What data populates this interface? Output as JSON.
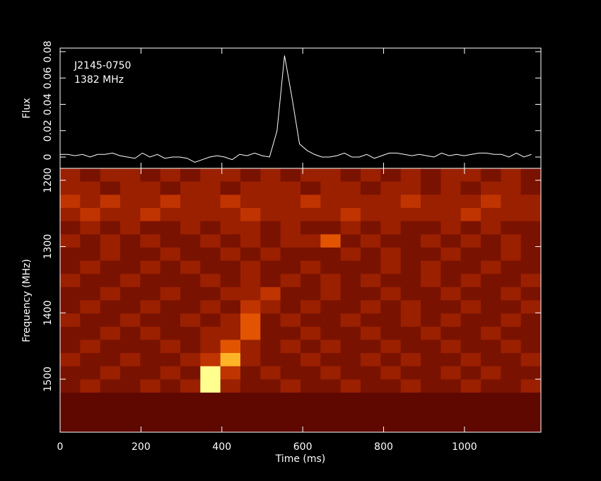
{
  "chart_data": [
    {
      "type": "line",
      "ylabel": "Flux",
      "annotations": [
        "J2145-0750",
        "1382 MHz"
      ],
      "color": "#ffffff",
      "xlim": [
        0,
        1189
      ],
      "xticks": [
        0,
        200,
        400,
        600,
        800,
        1000
      ],
      "ylim": [
        -0.0086,
        0.0827
      ],
      "yticks": [
        0,
        0.02,
        0.04,
        0.06,
        0.08
      ],
      "x": [
        0,
        18.5,
        37,
        55.5,
        74,
        92.5,
        111,
        129.5,
        148,
        166.5,
        185,
        203.5,
        222,
        240.5,
        259,
        277.5,
        296,
        314.5,
        333,
        351.5,
        370,
        388.5,
        407,
        425.5,
        444,
        462.5,
        481,
        499.5,
        518,
        536.5,
        555,
        573.5,
        592,
        610.5,
        629,
        647.5,
        666,
        684.5,
        703,
        721.5,
        740,
        758.5,
        777,
        795.5,
        814,
        832.5,
        851,
        869.5,
        888,
        906.5,
        925,
        943.5,
        962,
        980.5,
        999,
        1017.5,
        1036,
        1054.5,
        1073,
        1091.5,
        1110,
        1128.5,
        1147,
        1165.5
      ],
      "values": [
        0.002,
        0.002,
        0.001,
        0.002,
        0.0,
        0.002,
        0.002,
        0.003,
        0.001,
        0.0,
        -0.001,
        0.003,
        0.0,
        0.002,
        -0.001,
        0.0,
        0.0,
        -0.001,
        -0.004,
        -0.002,
        0.0,
        0.001,
        0.0,
        -0.002,
        0.002,
        0.001,
        0.003,
        0.001,
        0.0,
        0.02,
        0.077,
        0.045,
        0.01,
        0.005,
        0.002,
        0.0,
        0.0,
        0.001,
        0.003,
        0.0,
        0.0,
        0.002,
        -0.001,
        0.001,
        0.003,
        0.003,
        0.002,
        0.001,
        0.002,
        0.001,
        0.0,
        0.003,
        0.001,
        0.002,
        0.001,
        0.002,
        0.003,
        0.003,
        0.002,
        0.002,
        0.0,
        0.003,
        0.0,
        0.002
      ]
    },
    {
      "type": "heatmap",
      "xlabel": "Time (ms)",
      "ylabel": "Frequency (MHz)",
      "xlim": [
        0,
        1189
      ],
      "xticks": [
        0,
        200,
        400,
        600,
        800,
        1000
      ],
      "ylim": [
        1182,
        1580
      ],
      "y_inverted": true,
      "yticks": [
        1200,
        1300,
        1400,
        1500
      ],
      "colorscale": [
        "#000000",
        "#2a0000",
        "#5e0800",
        "#7a1200",
        "#9a2000",
        "#bf3400",
        "#e25400",
        "#f27a10",
        "#ffb428",
        "#ffff90"
      ],
      "z": [
        [
          4,
          3,
          4,
          4,
          3,
          4,
          3,
          4,
          4,
          3,
          4,
          3,
          4,
          4,
          3,
          4,
          3,
          4,
          3,
          4,
          4,
          3,
          4,
          3
        ],
        [
          4,
          4,
          3,
          4,
          4,
          3,
          4,
          4,
          3,
          4,
          4,
          4,
          3,
          4,
          4,
          3,
          4,
          4,
          3,
          4,
          3,
          4,
          4,
          3
        ],
        [
          5,
          4,
          5,
          4,
          4,
          5,
          4,
          4,
          5,
          4,
          4,
          4,
          5,
          4,
          4,
          4,
          4,
          5,
          4,
          4,
          4,
          5,
          4,
          4
        ],
        [
          4,
          5,
          4,
          4,
          5,
          4,
          4,
          4,
          4,
          5,
          4,
          4,
          4,
          4,
          5,
          4,
          4,
          4,
          4,
          4,
          5,
          4,
          4,
          4
        ],
        [
          3,
          4,
          3,
          4,
          3,
          3,
          4,
          3,
          4,
          4,
          3,
          4,
          3,
          3,
          4,
          3,
          4,
          3,
          3,
          4,
          3,
          4,
          3,
          3
        ],
        [
          4,
          3,
          4,
          3,
          4,
          3,
          3,
          4,
          3,
          4,
          3,
          4,
          4,
          6,
          3,
          4,
          3,
          3,
          4,
          3,
          4,
          3,
          4,
          3
        ],
        [
          3,
          3,
          4,
          3,
          3,
          4,
          3,
          3,
          4,
          3,
          4,
          3,
          3,
          3,
          4,
          3,
          4,
          3,
          3,
          4,
          3,
          3,
          4,
          3
        ],
        [
          3,
          4,
          3,
          3,
          4,
          3,
          4,
          3,
          3,
          4,
          3,
          3,
          4,
          3,
          3,
          3,
          4,
          3,
          4,
          3,
          3,
          4,
          3,
          3
        ],
        [
          4,
          3,
          3,
          4,
          3,
          3,
          3,
          4,
          3,
          4,
          3,
          4,
          3,
          4,
          3,
          4,
          3,
          3,
          4,
          3,
          4,
          3,
          3,
          4
        ],
        [
          3,
          3,
          4,
          3,
          3,
          4,
          3,
          3,
          4,
          4,
          5,
          3,
          3,
          4,
          3,
          3,
          4,
          3,
          3,
          4,
          3,
          3,
          4,
          3
        ],
        [
          3,
          4,
          3,
          3,
          4,
          3,
          3,
          4,
          3,
          5,
          4,
          3,
          4,
          3,
          3,
          4,
          3,
          4,
          3,
          3,
          4,
          3,
          3,
          4
        ],
        [
          4,
          3,
          3,
          4,
          3,
          3,
          4,
          3,
          4,
          6,
          3,
          4,
          3,
          3,
          4,
          3,
          3,
          4,
          3,
          4,
          3,
          3,
          4,
          3
        ],
        [
          3,
          3,
          4,
          3,
          4,
          3,
          3,
          4,
          4,
          6,
          3,
          3,
          4,
          3,
          3,
          4,
          3,
          3,
          4,
          3,
          3,
          4,
          3,
          3
        ],
        [
          3,
          4,
          3,
          3,
          3,
          4,
          3,
          4,
          6,
          4,
          3,
          4,
          3,
          4,
          3,
          3,
          4,
          3,
          3,
          4,
          3,
          3,
          4,
          3
        ],
        [
          4,
          3,
          3,
          4,
          3,
          3,
          4,
          5,
          8,
          4,
          3,
          3,
          4,
          3,
          3,
          4,
          3,
          4,
          3,
          3,
          4,
          3,
          3,
          4
        ],
        [
          3,
          3,
          4,
          3,
          3,
          4,
          3,
          9,
          5,
          3,
          4,
          3,
          3,
          4,
          3,
          3,
          4,
          3,
          3,
          4,
          3,
          4,
          3,
          3
        ],
        [
          3,
          4,
          3,
          3,
          4,
          3,
          4,
          9,
          4,
          3,
          3,
          4,
          3,
          3,
          4,
          3,
          3,
          4,
          3,
          3,
          4,
          3,
          3,
          4
        ],
        [
          2,
          2,
          2,
          2,
          2,
          2,
          2,
          2,
          2,
          2,
          2,
          2,
          2,
          2,
          2,
          2,
          2,
          2,
          2,
          2,
          2,
          2,
          2,
          2
        ],
        [
          2,
          2,
          2,
          2,
          2,
          2,
          2,
          2,
          2,
          2,
          2,
          2,
          2,
          2,
          2,
          2,
          2,
          2,
          2,
          2,
          2,
          2,
          2,
          2
        ],
        [
          2,
          2,
          2,
          2,
          2,
          2,
          2,
          2,
          2,
          2,
          2,
          2,
          2,
          2,
          2,
          2,
          2,
          2,
          2,
          2,
          2,
          2,
          2,
          2
        ]
      ]
    }
  ]
}
